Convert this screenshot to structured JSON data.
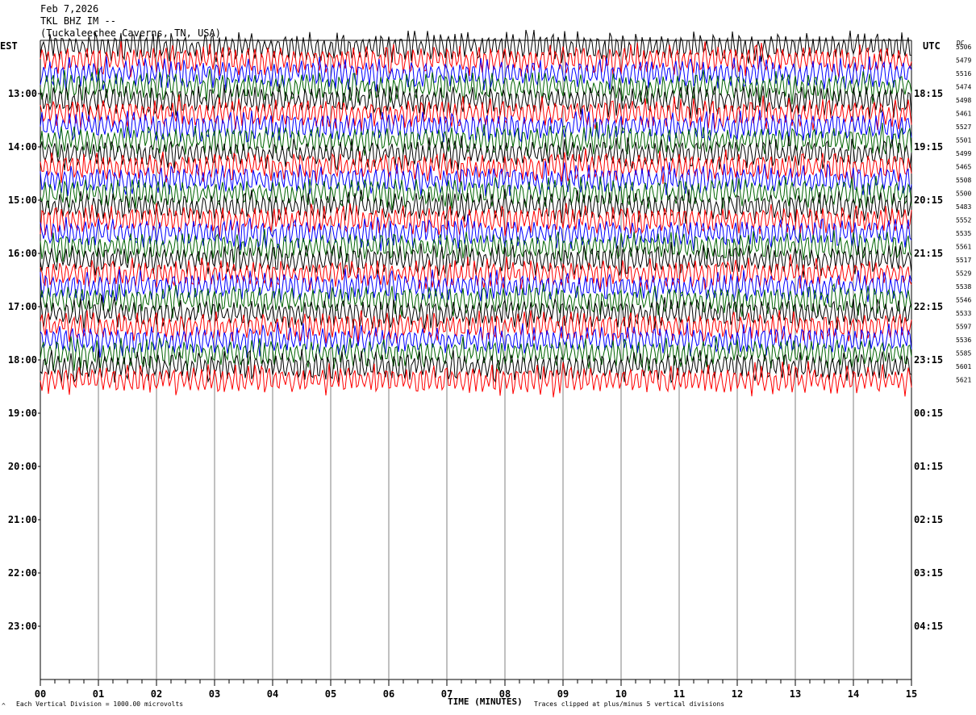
{
  "header": {
    "date": "Feb 7,2026",
    "station": "TKL BHZ IM --",
    "location": "(Tuckaleechee Caverns, TN, USA)"
  },
  "left_zone": "EST",
  "right_zone": "UTC",
  "dc_label": "DC",
  "footer": {
    "scale_note": "Each Vertical Division = 1000.00 microvolts",
    "clip_note": "Traces clipped at plus/minus 5 vertical divisions",
    "corner_mark": "^"
  },
  "colors": {
    "background": "#ffffff",
    "grid": "#808080",
    "trace_cycle": [
      "#000000",
      "#ff0000",
      "#0000ff",
      "#006400"
    ]
  },
  "chart_data": {
    "type": "line",
    "title": "TKL BHZ IM --",
    "subtitle": "(Tuckaleechee Caverns, TN, USA)",
    "xlabel": "TIME (MINUTES)",
    "xlim": [
      0,
      15
    ],
    "x_tick_labels": [
      "00",
      "01",
      "02",
      "03",
      "04",
      "05",
      "06",
      "07",
      "08",
      "09",
      "10",
      "11",
      "12",
      "13",
      "14",
      "15"
    ],
    "left_hour_labels": [
      "13:00",
      "14:00",
      "15:00",
      "16:00",
      "17:00",
      "18:00",
      "19:00",
      "20:00",
      "21:00",
      "22:00",
      "23:00"
    ],
    "right_hour_labels": [
      "18:15",
      "19:15",
      "20:15",
      "21:15",
      "22:15",
      "23:15",
      "00:15",
      "01:15",
      "02:15",
      "03:15",
      "04:15"
    ],
    "trace_start_hour": 12,
    "traces_per_hour": 4,
    "dc_offsets": [
      "5506",
      "5479",
      "5516",
      "5474",
      "5498",
      "5461",
      "5527",
      "5501",
      "5499",
      "5465",
      "5508",
      "5500",
      "5483",
      "5552",
      "5535",
      "5561",
      "5517",
      "5529",
      "5538",
      "5546",
      "5533",
      "5597",
      "5536",
      "5585",
      "5601",
      "5621"
    ],
    "rows_total": 48,
    "grid": true
  }
}
